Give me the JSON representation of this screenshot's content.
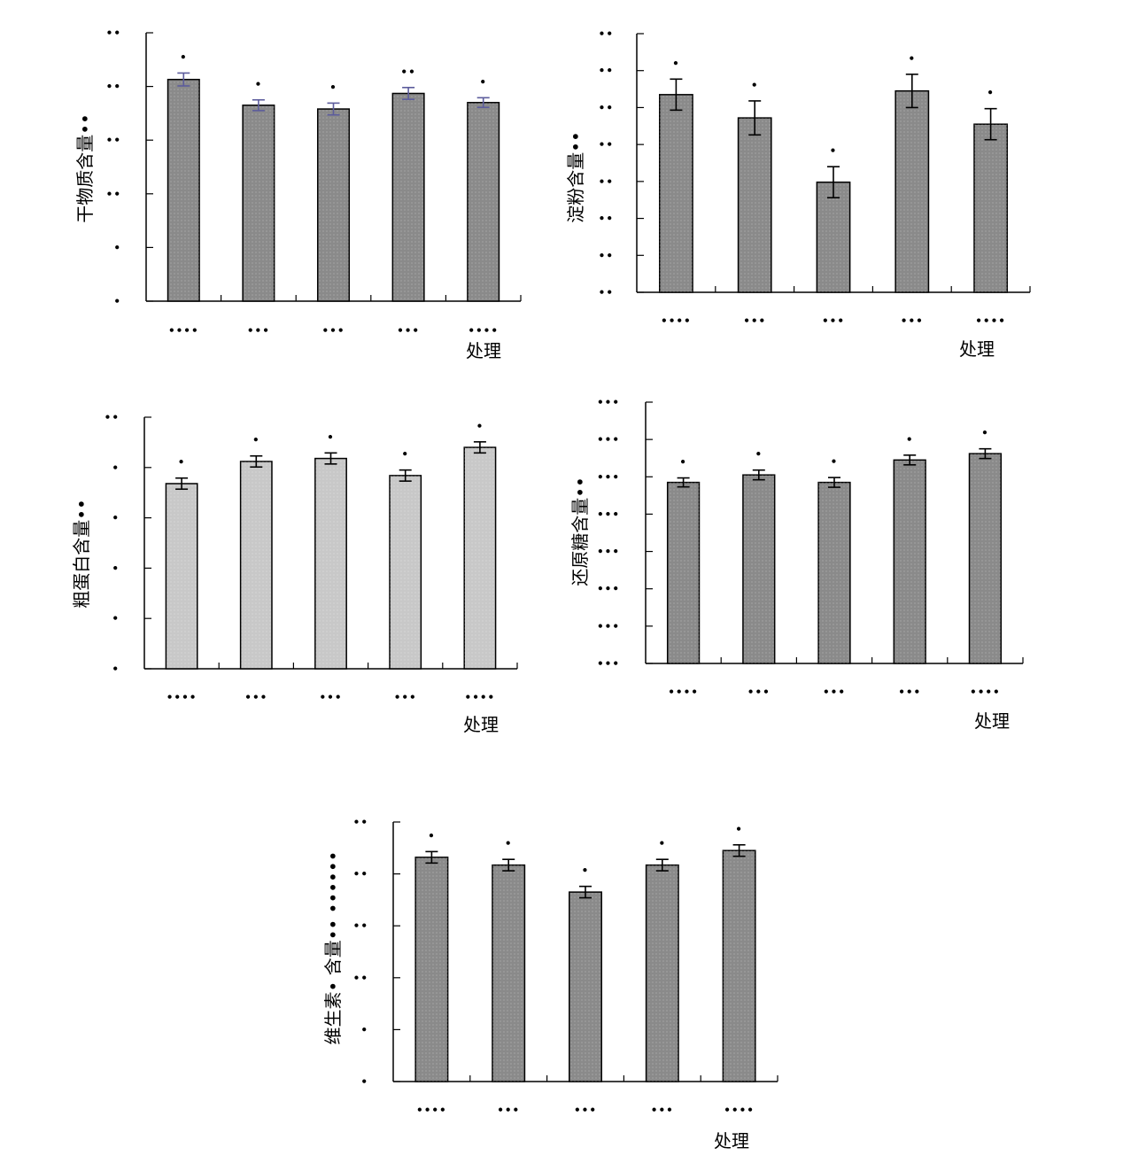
{
  "colors": {
    "bar_dark": "#8a8a8a",
    "bar_light": "#c8c8c8",
    "err_black": "#000000",
    "err_blue": "#5c5c9c"
  },
  "chart_data": [
    {
      "type": "bar",
      "ylabel": "干物质含量••",
      "xlabel": "处理",
      "categories": [
        "••••",
        "•••",
        "•••",
        "•••",
        "••••"
      ],
      "ytick_labels": [
        "•",
        "•",
        "••",
        "••",
        "••",
        "••"
      ],
      "ylim": [
        0,
        5
      ],
      "values": [
        4.13,
        3.65,
        3.58,
        3.87,
        3.7
      ],
      "errors": [
        0.12,
        0.1,
        0.11,
        0.11,
        0.09
      ],
      "annotations": [
        "•",
        "•",
        "•",
        "••",
        "•"
      ],
      "bar_color": "#8a8a8a",
      "error_color": "#5c5c9c"
    },
    {
      "type": "bar",
      "ylabel": "淀粉含量••",
      "xlabel": "处理",
      "categories": [
        "••••",
        "•••",
        "•••",
        "•••",
        "••••"
      ],
      "ytick_labels": [
        "••",
        "••",
        "••",
        "••",
        "••",
        "••",
        "••",
        "••"
      ],
      "ylim": [
        0,
        7
      ],
      "values": [
        5.35,
        4.72,
        2.98,
        5.45,
        4.55
      ],
      "errors": [
        0.42,
        0.46,
        0.42,
        0.45,
        0.42
      ],
      "annotations": [
        "•",
        "•",
        "•",
        "•",
        "•"
      ],
      "bar_color": "#8a8a8a",
      "error_color": "#000000"
    },
    {
      "type": "bar",
      "ylabel": "粗蛋白含量••",
      "xlabel": "处理",
      "categories": [
        "••••",
        "•••",
        "•••",
        "•••",
        "••••"
      ],
      "ytick_labels": [
        "•",
        "•",
        "•",
        "•",
        "•",
        "••"
      ],
      "ylim": [
        0,
        5
      ],
      "values": [
        3.68,
        4.12,
        4.18,
        3.84,
        4.4
      ],
      "errors": [
        0.11,
        0.11,
        0.11,
        0.11,
        0.11
      ],
      "annotations": [
        "•",
        "•",
        "•",
        "•",
        "•"
      ],
      "bar_color": "#c8c8c8",
      "error_color": "#000000"
    },
    {
      "type": "bar",
      "ylabel": "还原糖含量••",
      "xlabel": "处理",
      "categories": [
        "••••",
        "•••",
        "•••",
        "•••",
        "••••"
      ],
      "ytick_labels": [
        "•••",
        "•••",
        "•••",
        "•••",
        "•••",
        "•••",
        "•••",
        "•••"
      ],
      "ylim": [
        0,
        7
      ],
      "values": [
        4.85,
        5.05,
        4.85,
        5.45,
        5.62
      ],
      "errors": [
        0.12,
        0.13,
        0.13,
        0.13,
        0.13
      ],
      "annotations": [
        "•",
        "•",
        "•",
        "•",
        "•"
      ],
      "bar_color": "#8a8a8a",
      "error_color": "#000000"
    },
    {
      "type": "bar",
      "ylabel": "维生素• 含量•• ••••••",
      "xlabel": "处理",
      "categories": [
        "••••",
        "•••",
        "•••",
        "•••",
        "••••"
      ],
      "ytick_labels": [
        "•",
        "•",
        "••",
        "••",
        "••",
        "••"
      ],
      "ylim": [
        0,
        5
      ],
      "values": [
        4.32,
        4.17,
        3.65,
        4.17,
        4.45
      ],
      "errors": [
        0.11,
        0.11,
        0.11,
        0.11,
        0.11
      ],
      "annotations": [
        "•",
        "•",
        "•",
        "•",
        "•"
      ],
      "bar_color": "#8a8a8a",
      "error_color": "#000000"
    }
  ]
}
